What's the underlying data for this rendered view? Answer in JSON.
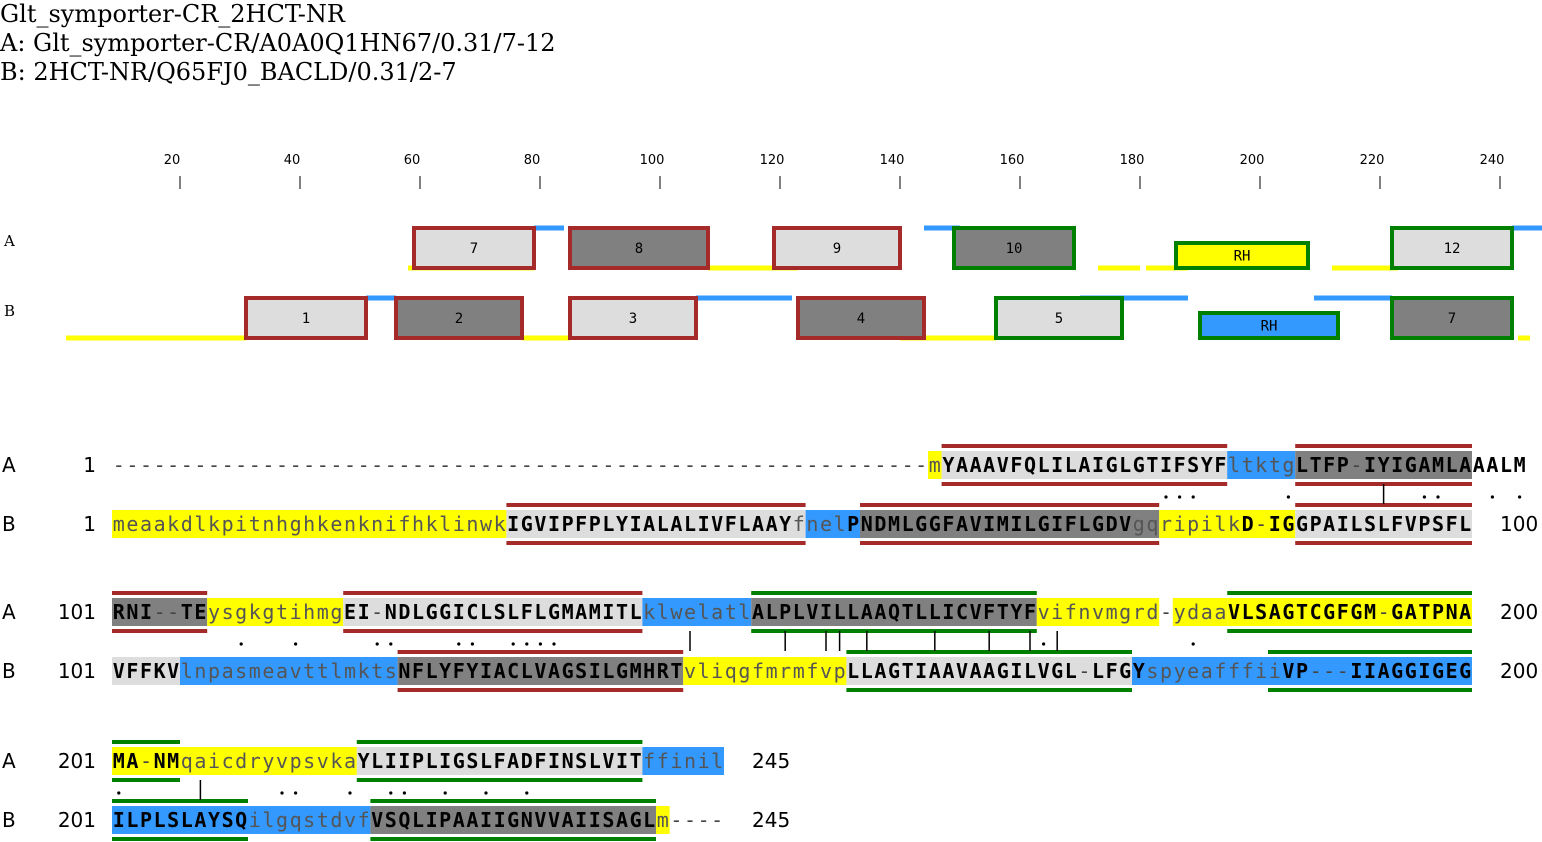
{
  "header": {
    "title": "Glt_symporter-CR_2HCT-NR",
    "line_a": "A: Glt_symporter-CR/A0A0Q1HN67/0.31/7-12",
    "line_b": "B: 2HCT-NR/Q65FJ0_BACLD/0.31/2-7"
  },
  "colors": {
    "loop": "#ffff00",
    "helix": "#3399ff",
    "seg_light": "#dddddd",
    "seg_dark": "#808080",
    "border_red": "#a52a2a",
    "border_green": "#008000",
    "match_gray": "#999999"
  },
  "ruler": {
    "ticks": [
      20,
      40,
      60,
      80,
      100,
      120,
      140,
      160,
      180,
      200,
      220,
      240
    ]
  },
  "track_labels": {
    "a": "A",
    "b": "B"
  },
  "tracks": {
    "a": {
      "lines": [
        {
          "s": 58,
          "e": 79,
          "c": "loop"
        },
        {
          "s": 79,
          "e": 84,
          "c": "helix"
        },
        {
          "s": 108,
          "e": 123,
          "c": "loop"
        },
        {
          "s": 144,
          "e": 150,
          "c": "helix"
        },
        {
          "s": 173,
          "e": 180,
          "c": "loop"
        },
        {
          "s": 181,
          "e": 188,
          "c": "loop"
        },
        {
          "s": 212,
          "e": 223,
          "c": "loop"
        },
        {
          "s": 242,
          "e": 247,
          "c": "helix"
        }
      ],
      "segments": [
        {
          "label": "7",
          "s": 59,
          "e": 79,
          "fill": "seg_light",
          "border": "border_red"
        },
        {
          "label": "8",
          "s": 85,
          "e": 108,
          "fill": "seg_dark",
          "border": "border_red"
        },
        {
          "label": "9",
          "s": 119,
          "e": 140,
          "fill": "seg_light",
          "border": "border_red"
        },
        {
          "label": "10",
          "s": 149,
          "e": 169,
          "fill": "seg_dark",
          "border": "border_green"
        },
        {
          "label": "RH",
          "s": 186,
          "e": 208,
          "fill": "loop",
          "border": "border_green",
          "thin": true
        },
        {
          "label": "12",
          "s": 222,
          "e": 242,
          "fill": "seg_light",
          "border": "border_green"
        }
      ]
    },
    "b": {
      "lines": [
        {
          "s": 1,
          "e": 31,
          "c": "loop"
        },
        {
          "s": 51,
          "e": 56,
          "c": "helix"
        },
        {
          "s": 77,
          "e": 85,
          "c": "loop"
        },
        {
          "s": 106,
          "e": 122,
          "c": "helix"
        },
        {
          "s": 140,
          "e": 156,
          "c": "loop"
        },
        {
          "s": 170,
          "e": 188,
          "c": "helix"
        },
        {
          "s": 209,
          "e": 222,
          "c": "helix"
        },
        {
          "s": 243,
          "e": 245,
          "c": "loop"
        }
      ],
      "segments": [
        {
          "label": "1",
          "s": 31,
          "e": 51,
          "fill": "seg_light",
          "border": "border_red"
        },
        {
          "label": "2",
          "s": 56,
          "e": 77,
          "fill": "seg_dark",
          "border": "border_red"
        },
        {
          "label": "3",
          "s": 85,
          "e": 106,
          "fill": "seg_light",
          "border": "border_red"
        },
        {
          "label": "4",
          "s": 123,
          "e": 144,
          "fill": "seg_dark",
          "border": "border_red"
        },
        {
          "label": "5",
          "s": 156,
          "e": 177,
          "fill": "seg_light",
          "border": "border_green"
        },
        {
          "label": "RH",
          "s": 190,
          "e": 213,
          "fill": "helix",
          "border": "border_green",
          "thin": true
        },
        {
          "label": "7",
          "s": 222,
          "e": 242,
          "fill": "seg_dark",
          "border": "border_green"
        }
      ]
    }
  },
  "alignment": [
    {
      "a_label": "A",
      "b_label": "B",
      "a_start": "1",
      "a_end": "100",
      "b_start": "1",
      "b_end": "100",
      "a_seq": "------------------------------------------------------------mYAAAVFQLILAIGLGTIFSYFltktgLTFP-IYIGAMLAAALM",
      "b_seq": "meaakdlkpitnhghkenknifhklinwkIGVIPFPLYIALALIVFLAAYfnelPNDMLGGFAVIMILGIFLGDVgqripilkD-IGGPAILSLFVPSFL",
      "match": "                                                                             ...      .      |  ..   . .",
      "a_runs": [
        {
          "s": 61,
          "e": 61,
          "fill": "loop"
        },
        {
          "s": 62,
          "e": 82,
          "fill": "seg_light",
          "border": "border_red"
        },
        {
          "s": 83,
          "e": 87,
          "fill": "helix"
        },
        {
          "s": 88,
          "e": 100,
          "fill": "seg_dark",
          "border": "border_red"
        }
      ],
      "b_runs": [
        {
          "s": 1,
          "e": 29,
          "fill": "loop"
        },
        {
          "s": 30,
          "e": 51,
          "fill": "seg_light",
          "border": "border_red"
        },
        {
          "s": 52,
          "e": 55,
          "fill": "helix"
        },
        {
          "s": 56,
          "e": 77,
          "fill": "seg_dark",
          "border": "border_red"
        },
        {
          "s": 78,
          "e": 87,
          "fill": "loop"
        },
        {
          "s": 88,
          "e": 100,
          "fill": "seg_light",
          "border": "border_red"
        }
      ]
    },
    {
      "a_label": "A",
      "b_label": "B",
      "a_start": "101",
      "a_end": "200",
      "b_start": "101",
      "b_end": "200",
      "a_seq": "RNI--TEysgkgtihmgEI-NDLGGICLSLFLGMAMITLklwelatlALPLVILLAAQTLLICVFTYFvifnvmgrd-ydaaVLSAGTCGFGM-GATPNA",
      "b_seq": "VFFKVlnpasmeavttlmktsNFLYFYIACLVAGSILGMHRTvliqgfmrmfvpLLAGTIAAVAAGILVGL-LFGYspyeafffiiVP---IIAGGIGEG",
      "match": "         .   .     ..    ..  ....         |      |  || |    |   |  |.|         .                  ",
      "a_runs": [
        {
          "s": 1,
          "e": 7,
          "fill": "seg_dark",
          "border": "border_red"
        },
        {
          "s": 8,
          "e": 17,
          "fill": "loop"
        },
        {
          "s": 18,
          "e": 39,
          "fill": "seg_light",
          "border": "border_red"
        },
        {
          "s": 40,
          "e": 47,
          "fill": "helix"
        },
        {
          "s": 48,
          "e": 68,
          "fill": "seg_dark",
          "border": "border_green"
        },
        {
          "s": 69,
          "e": 77,
          "fill": "loop"
        },
        {
          "s": 79,
          "e": 82,
          "fill": "loop"
        },
        {
          "s": 83,
          "e": 100,
          "fill": "loop",
          "border": "border_green"
        }
      ],
      "b_runs": [
        {
          "s": 1,
          "e": 5,
          "fill": "seg_light"
        },
        {
          "s": 6,
          "e": 21,
          "fill": "helix"
        },
        {
          "s": 22,
          "e": 42,
          "fill": "seg_dark",
          "border": "border_red"
        },
        {
          "s": 43,
          "e": 54,
          "fill": "loop"
        },
        {
          "s": 55,
          "e": 75,
          "fill": "seg_light",
          "border": "border_green"
        },
        {
          "s": 76,
          "e": 85,
          "fill": "helix"
        },
        {
          "s": 86,
          "e": 100,
          "fill": "helix",
          "border": "border_green"
        }
      ]
    },
    {
      "a_label": "A",
      "b_label": "B",
      "a_start": "201",
      "a_end": "245",
      "b_start": "201",
      "b_end": "245",
      "a_seq": "MA-NMqaicdryvpsvkaYLIIPLIGSLFADFINSLVITffinil",
      "b_seq": "ILPLSLAYSQilgqstdvfVSQLIPAAIIGNVVAIISAGLm----",
      "match": ".     |     ..   .  ..  .  .  .",
      "a_runs": [
        {
          "s": 1,
          "e": 5,
          "fill": "loop",
          "border": "border_green"
        },
        {
          "s": 6,
          "e": 18,
          "fill": "loop"
        },
        {
          "s": 19,
          "e": 39,
          "fill": "seg_light",
          "border": "border_green"
        },
        {
          "s": 40,
          "e": 45,
          "fill": "helix"
        }
      ],
      "b_runs": [
        {
          "s": 1,
          "e": 10,
          "fill": "helix",
          "border": "border_green"
        },
        {
          "s": 11,
          "e": 19,
          "fill": "helix"
        },
        {
          "s": 20,
          "e": 40,
          "fill": "seg_dark",
          "border": "border_green"
        },
        {
          "s": 41,
          "e": 41,
          "fill": "loop"
        }
      ]
    }
  ]
}
